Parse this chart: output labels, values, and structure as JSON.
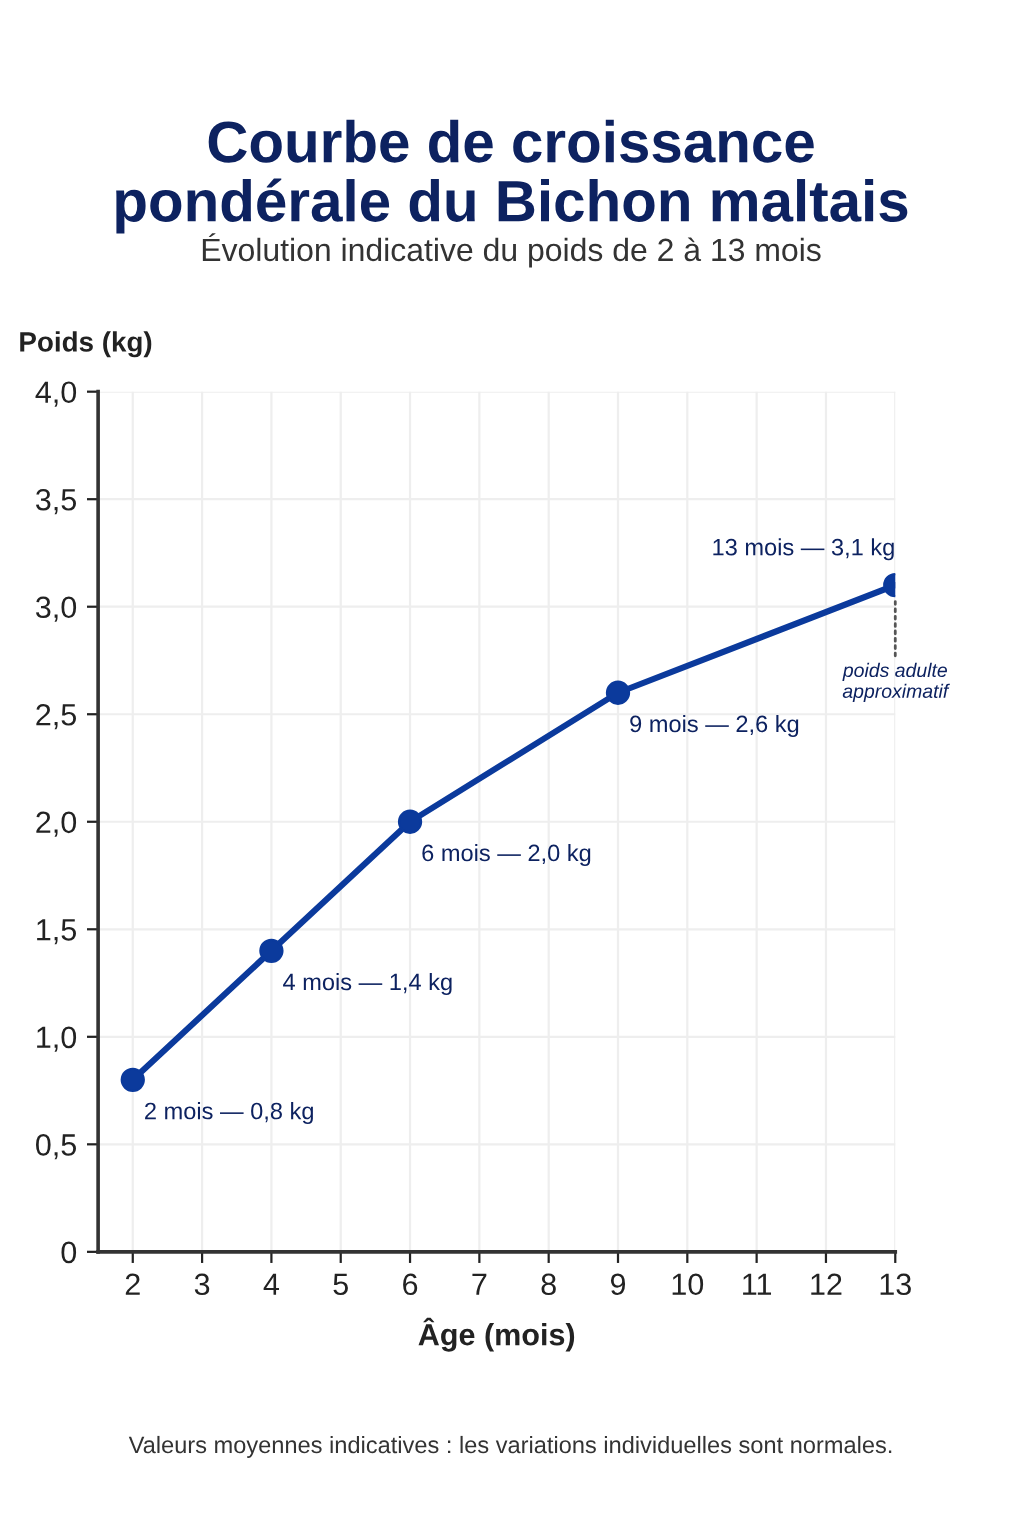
{
  "chart_data": {
    "type": "line",
    "title": "Courbe de croissance\npondérale du Bichon maltais",
    "subtitle": "Évolution indicative du poids de 2 à 13 mois",
    "xlabel": "Âge (mois)",
    "ylabel": "Poids (kg)",
    "x": [
      2,
      4,
      6,
      9,
      13
    ],
    "series": [
      {
        "color": "#0b3a9c",
        "values": [
          0.8,
          1.4,
          2.0,
          2.6,
          3.1
        ],
        "value_labels": [
          "2 mois — 0,8 kg",
          "4 mois — 1,4 kg",
          "6 mois — 2,0 kg",
          "9 mois — 2,6 kg",
          "13 mois — 3,1 kg"
        ]
      }
    ],
    "xlim": [
      1.5,
      13
    ],
    "xticks": [
      2,
      3,
      4,
      5,
      6,
      7,
      8,
      9,
      10,
      11,
      12,
      13
    ],
    "ylim": [
      0,
      4
    ],
    "yticks": [
      0,
      {
        "value": 0.5,
        "label": "0,5"
      },
      {
        "value": 1.0,
        "label": "1,0"
      },
      {
        "value": 1.5,
        "label": "1,5"
      },
      {
        "value": 2.0,
        "label": "2,0"
      },
      {
        "value": 2.5,
        "label": "2,5"
      },
      {
        "value": 3.0,
        "label": "3,0"
      },
      {
        "value": 3.5,
        "label": "3,5"
      },
      {
        "value": 4.0,
        "label": "4,0"
      }
    ],
    "grid": true,
    "marker": "circle",
    "line_style": "solid",
    "annotations": [
      {
        "text": "poids adulte\napproximatif",
        "x": 13,
        "y": 3.1
      },
      "Valeurs moyennes indicatives : les variations individuelles sont normales."
    ]
  }
}
